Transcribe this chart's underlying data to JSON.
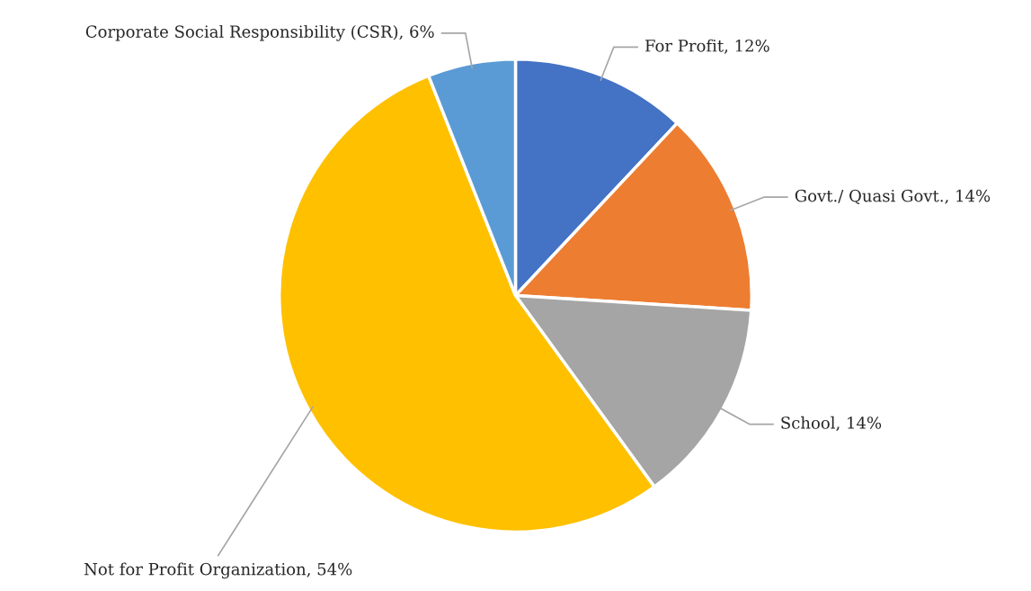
{
  "chart_data": {
    "type": "pie",
    "categories": [
      "For Profit",
      "Govt./ Quasi Govt.",
      "School",
      "Not for Profit Organization",
      "Corporate Social Responsibility (CSR)"
    ],
    "values": [
      12,
      14,
      14,
      54,
      6
    ],
    "value_labels": [
      "12%",
      "14%",
      "14%",
      "54%",
      "6%"
    ],
    "colors": [
      "#4472c4",
      "#ed7d31",
      "#a5a5a5",
      "#ffc000",
      "#5b9bd5"
    ],
    "legend": false
  }
}
